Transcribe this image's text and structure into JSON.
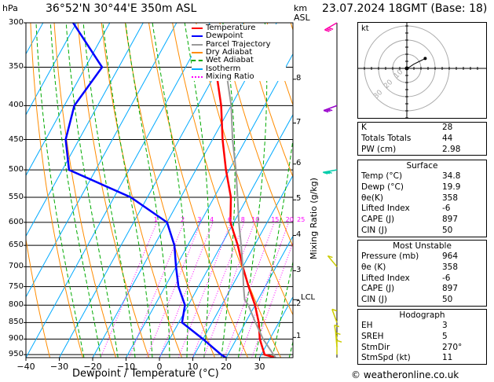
{
  "header": {
    "hpa_label": "hPa",
    "location": "36°52'N  30°44'E  350m  ASL",
    "km_label": "km",
    "asl_label": "ASL",
    "datetime": "23.07.2024  18GMT  (Base: 18)"
  },
  "footer": {
    "xlabel": "Dewpoint / Temperature (°C)",
    "copyright": "© weatheronline.co.uk"
  },
  "ylabel_mixing": "Mixing Ratio (g/kg)",
  "legend": [
    {
      "label": "Temperature",
      "color": "#ff0000"
    },
    {
      "label": "Dewpoint",
      "color": "#0000ff"
    },
    {
      "label": "Parcel Trajectory",
      "color": "#999999"
    },
    {
      "label": "Dry Adiabat",
      "color": "#ff8c00"
    },
    {
      "label": "Wet Adiabat",
      "color": "#00aa00"
    },
    {
      "label": "Isotherm",
      "color": "#00aaff"
    },
    {
      "label": "Mixing Ratio",
      "color": "#ff00ff"
    }
  ],
  "lcl_label": "LCL",
  "hodograph": {
    "unit": "kt",
    "ring_labels": [
      "10",
      "20",
      "30"
    ]
  },
  "indices": {
    "rows": [
      {
        "label": "K",
        "value": "28"
      },
      {
        "label": "Totals Totals",
        "value": "44"
      },
      {
        "label": "PW (cm)",
        "value": "2.98"
      }
    ]
  },
  "surface": {
    "title": "Surface",
    "rows": [
      {
        "label": "Temp (°C)",
        "value": "34.8"
      },
      {
        "label": "Dewp (°C)",
        "value": "19.9"
      },
      {
        "label": "θe(K)",
        "value": "358"
      },
      {
        "label": "Lifted Index",
        "value": "-6"
      },
      {
        "label": "CAPE (J)",
        "value": "897"
      },
      {
        "label": "CIN (J)",
        "value": "50"
      }
    ]
  },
  "most_unstable": {
    "title": "Most Unstable",
    "rows": [
      {
        "label": "Pressure (mb)",
        "value": "964"
      },
      {
        "label": "θe (K)",
        "value": "358"
      },
      {
        "label": "Lifted Index",
        "value": "-6"
      },
      {
        "label": "CAPE (J)",
        "value": "897"
      },
      {
        "label": "CIN (J)",
        "value": "50"
      }
    ]
  },
  "hodograph_table": {
    "title": "Hodograph",
    "rows": [
      {
        "label": "EH",
        "value": "3"
      },
      {
        "label": "SREH",
        "value": "5"
      },
      {
        "label": "StmDir",
        "value": "270°"
      },
      {
        "label": "StmSpd (kt)",
        "value": "11"
      }
    ]
  },
  "chart_data": {
    "type": "line",
    "title": "Skew-T log-P diagram",
    "xlabel": "Dewpoint / Temperature (°C)",
    "ylabel": "hPa",
    "pressure_levels": [
      300,
      350,
      400,
      450,
      500,
      550,
      600,
      650,
      700,
      750,
      800,
      850,
      900,
      950
    ],
    "pressure_tick_labels": [
      "300",
      "350",
      "400",
      "450",
      "500",
      "550",
      "600",
      "650",
      "700",
      "750",
      "800",
      "850",
      "900",
      "950"
    ],
    "x_ticks": [
      -40,
      -30,
      -20,
      -10,
      0,
      10,
      20,
      30
    ],
    "x_tick_labels": [
      "−40",
      "−30",
      "−20",
      "−10",
      "0",
      "10",
      "20",
      "30"
    ],
    "xlim": [
      -40,
      40
    ],
    "ylim": [
      960,
      300
    ],
    "km_levels": [
      {
        "km": "1",
        "p": 895
      },
      {
        "km": "2",
        "p": 800
      },
      {
        "km": "3",
        "p": 710
      },
      {
        "km": "4",
        "p": 628
      },
      {
        "km": "5",
        "p": 555
      },
      {
        "km": "6",
        "p": 490
      },
      {
        "km": "7",
        "p": 425
      },
      {
        "km": "8",
        "p": 365
      }
    ],
    "lcl_p": 785,
    "mixing_ratios": [
      "1",
      "2",
      "3",
      "4",
      "6",
      "8",
      "10",
      "15",
      "20",
      "25"
    ],
    "mixing_ratio_values": [
      1,
      2,
      3,
      4,
      6,
      8,
      10,
      15,
      20,
      25
    ],
    "series": [
      {
        "name": "Temperature",
        "color": "#ff0000",
        "points": [
          [
            960,
            34.8
          ],
          [
            950,
            31
          ],
          [
            900,
            27
          ],
          [
            850,
            24
          ],
          [
            800,
            20
          ],
          [
            750,
            15
          ],
          [
            700,
            10
          ],
          [
            650,
            5
          ],
          [
            600,
            -1
          ],
          [
            550,
            -5
          ],
          [
            500,
            -11
          ],
          [
            450,
            -17
          ],
          [
            400,
            -23
          ],
          [
            350,
            -31
          ],
          [
            330,
            -35
          ]
        ]
      },
      {
        "name": "Dewpoint",
        "color": "#0000ff",
        "points": [
          [
            960,
            19.9
          ],
          [
            950,
            18
          ],
          [
            900,
            10
          ],
          [
            850,
            1
          ],
          [
            800,
            -1
          ],
          [
            750,
            -6
          ],
          [
            700,
            -10
          ],
          [
            650,
            -14
          ],
          [
            600,
            -20
          ],
          [
            550,
            -35
          ],
          [
            500,
            -58
          ],
          [
            450,
            -64
          ],
          [
            400,
            -67
          ],
          [
            350,
            -65
          ],
          [
            300,
            -81
          ]
        ]
      },
      {
        "name": "Parcel Trajectory",
        "color": "#999999",
        "points": [
          [
            960,
            34.8
          ],
          [
            900,
            28
          ],
          [
            850,
            23
          ],
          [
            800,
            18
          ],
          [
            785,
            16
          ],
          [
            750,
            13.5
          ],
          [
            700,
            10
          ],
          [
            650,
            6
          ],
          [
            600,
            1.5
          ],
          [
            550,
            -3
          ],
          [
            500,
            -8
          ],
          [
            450,
            -14
          ],
          [
            400,
            -20
          ],
          [
            350,
            -28
          ],
          [
            330,
            -32
          ]
        ]
      }
    ],
    "wind_barbs": [
      {
        "p": 300,
        "dir": 300,
        "speed_kt": 50
      },
      {
        "p": 400,
        "dir": 290,
        "speed_kt": 35
      },
      {
        "p": 500,
        "dir": 280,
        "speed_kt": 25
      },
      {
        "p": 700,
        "dir": 220,
        "speed_kt": 10
      },
      {
        "p": 850,
        "dir": 200,
        "speed_kt": 5
      },
      {
        "p": 900,
        "dir": 190,
        "speed_kt": 10
      },
      {
        "p": 925,
        "dir": 185,
        "speed_kt": 10
      },
      {
        "p": 950,
        "dir": 180,
        "speed_kt": 10
      }
    ],
    "hodograph_points": [
      [
        0,
        0
      ],
      [
        2,
        1
      ],
      [
        5,
        3
      ],
      [
        9,
        5
      ],
      [
        13,
        7
      ]
    ]
  }
}
